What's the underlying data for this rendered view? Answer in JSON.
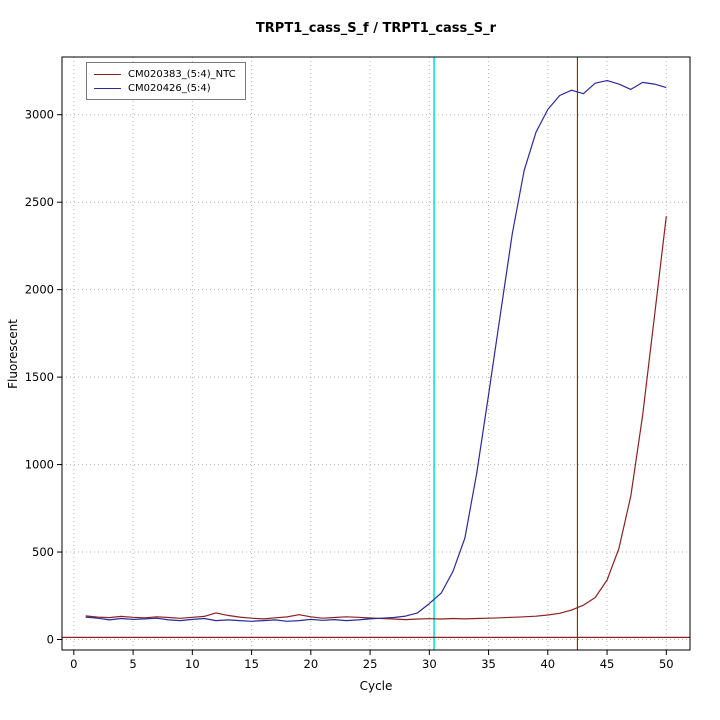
{
  "chart_data": {
    "type": "line",
    "title": "TRPT1_cass_S_f / TRPT1_cass_S_r",
    "xlabel": "Cycle",
    "ylabel": "Fluorescent",
    "xticks": [
      0,
      5,
      10,
      15,
      20,
      25,
      30,
      35,
      40,
      45,
      50
    ],
    "yticks": [
      0,
      500,
      1000,
      1500,
      2000,
      2500,
      3000
    ],
    "x_range": [
      -1,
      52
    ],
    "y_range": [
      -60,
      3330
    ],
    "grid": true,
    "grid_color": "#b3b3b3",
    "legend_position": "top-left",
    "background": "#ffffff",
    "series": [
      {
        "name": "CM020383_(5:4)_NTC",
        "color": "#8b2222",
        "x": [
          1,
          2,
          3,
          4,
          5,
          6,
          7,
          8,
          9,
          10,
          11,
          12,
          13,
          14,
          15,
          16,
          17,
          18,
          19,
          20,
          21,
          22,
          23,
          24,
          25,
          26,
          27,
          28,
          29,
          30,
          31,
          32,
          33,
          34,
          35,
          36,
          37,
          38,
          39,
          40,
          41,
          42,
          43,
          44,
          45,
          46,
          47,
          48,
          49,
          50
        ],
        "values": [
          135,
          128,
          125,
          132,
          127,
          124,
          130,
          126,
          121,
          127,
          132,
          152,
          138,
          128,
          122,
          118,
          124,
          129,
          142,
          130,
          122,
          126,
          130,
          127,
          123,
          120,
          117,
          114,
          117,
          119,
          117,
          120,
          118,
          120,
          122,
          124,
          127,
          130,
          133,
          140,
          150,
          168,
          196,
          240,
          340,
          520,
          820,
          1280,
          1850,
          2420
        ]
      },
      {
        "name": "CM020426_(5:4)",
        "color": "#2a2a9a",
        "x": [
          1,
          2,
          3,
          4,
          5,
          6,
          7,
          8,
          9,
          10,
          11,
          12,
          13,
          14,
          15,
          16,
          17,
          18,
          19,
          20,
          21,
          22,
          23,
          24,
          25,
          26,
          27,
          28,
          29,
          30,
          31,
          32,
          33,
          34,
          35,
          36,
          37,
          38,
          39,
          40,
          41,
          42,
          43,
          44,
          45,
          46,
          47,
          48,
          49,
          50
        ],
        "values": [
          128,
          122,
          112,
          120,
          115,
          118,
          122,
          112,
          108,
          115,
          120,
          108,
          112,
          108,
          104,
          108,
          112,
          104,
          108,
          115,
          110,
          114,
          108,
          112,
          118,
          122,
          126,
          134,
          152,
          205,
          265,
          390,
          580,
          950,
          1400,
          1860,
          2320,
          2680,
          2900,
          3030,
          3110,
          3140,
          3120,
          3180,
          3195,
          3175,
          3145,
          3185,
          3175,
          3155
        ]
      }
    ],
    "vlines": [
      {
        "x": 30.4,
        "color": "#00dddd",
        "width": 1.5,
        "name": "cyan-threshold-cycle-line"
      },
      {
        "x": 42.5,
        "color": "#8b2222",
        "width": 1.1,
        "name": "darkred-marker-cycle-line"
      }
    ],
    "hlines": [
      {
        "y": 12,
        "color": "#8b2222",
        "name": "baseline-threshold-line"
      }
    ]
  }
}
